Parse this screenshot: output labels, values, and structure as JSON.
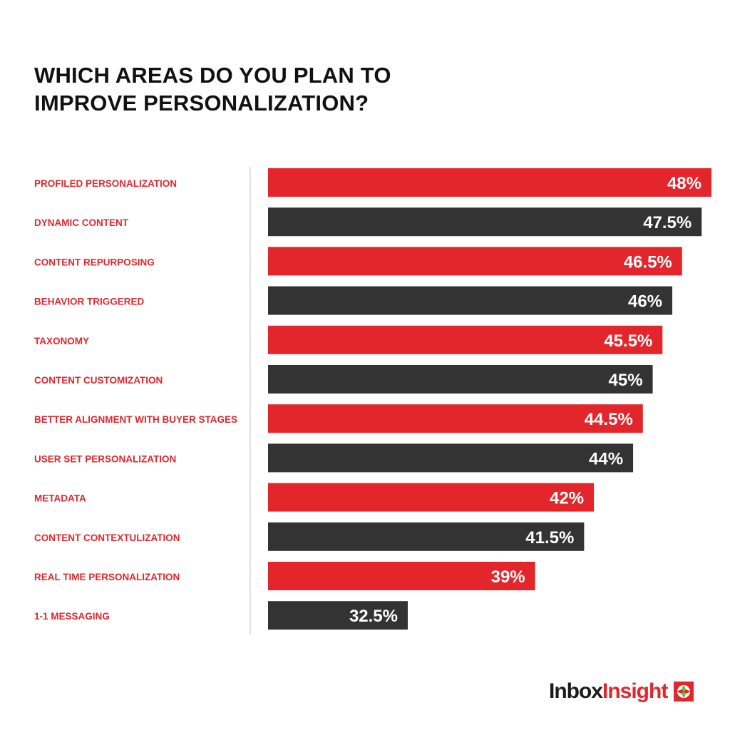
{
  "chart_data": {
    "type": "bar",
    "orientation": "horizontal",
    "title": "WHICH AREAS DO YOU PLAN TO IMPROVE PERSONALIZATION?",
    "categories": [
      "PROFILED PERSONALIZATION",
      "DYNAMIC CONTENT",
      "CONTENT REPURPOSING",
      "BEHAVIOR TRIGGERED",
      "TAXONOMY",
      "CONTENT CUSTOMIZATION",
      "BETTER ALIGNMENT WITH BUYER STAGES",
      "USER SET PERSONALIZATION",
      "METADATA",
      "CONTENT CONTEXTULIZATION",
      "REAL TIME PERSONALIZATION",
      "1-1 MESSAGING"
    ],
    "values": [
      48,
      47.5,
      46.5,
      46,
      45.5,
      45,
      44.5,
      44,
      42,
      41.5,
      39,
      32.5
    ],
    "value_labels": [
      "48%",
      "47.5%",
      "46.5%",
      "46%",
      "45.5%",
      "45%",
      "44.5%",
      "44%",
      "42%",
      "41.5%",
      "39%",
      "32.5%"
    ],
    "bar_colors": [
      "#e3262b",
      "#333333"
    ],
    "label_color": "#e3262b",
    "xlabel": "",
    "ylabel": "",
    "grid": false,
    "legend": "none"
  },
  "brand": {
    "name_part1": "Inbox",
    "name_part2": "Insight",
    "logo_icon": "compass-cross-icon"
  }
}
